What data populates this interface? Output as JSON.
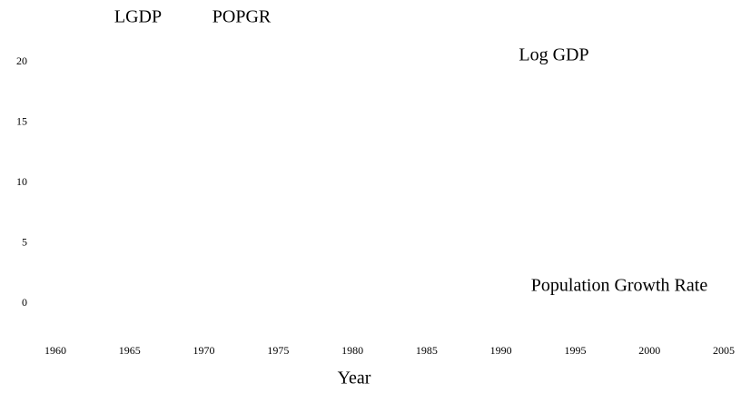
{
  "chart_data": {
    "type": "line",
    "x_label": "Year",
    "x": [],
    "series": [
      {
        "name": "LGDP",
        "values": []
      },
      {
        "name": "POPGR",
        "values": []
      }
    ],
    "annotations": [
      "Log GDP",
      "Population Growth Rate"
    ],
    "xlim": [
      1960,
      2005
    ],
    "xticks": [
      1960,
      1965,
      1970,
      1975,
      1980,
      1985,
      1990,
      1995,
      2000,
      2005
    ],
    "ylim": [
      0,
      20
    ],
    "yticks": [
      0,
      5,
      10,
      15,
      20
    ]
  }
}
